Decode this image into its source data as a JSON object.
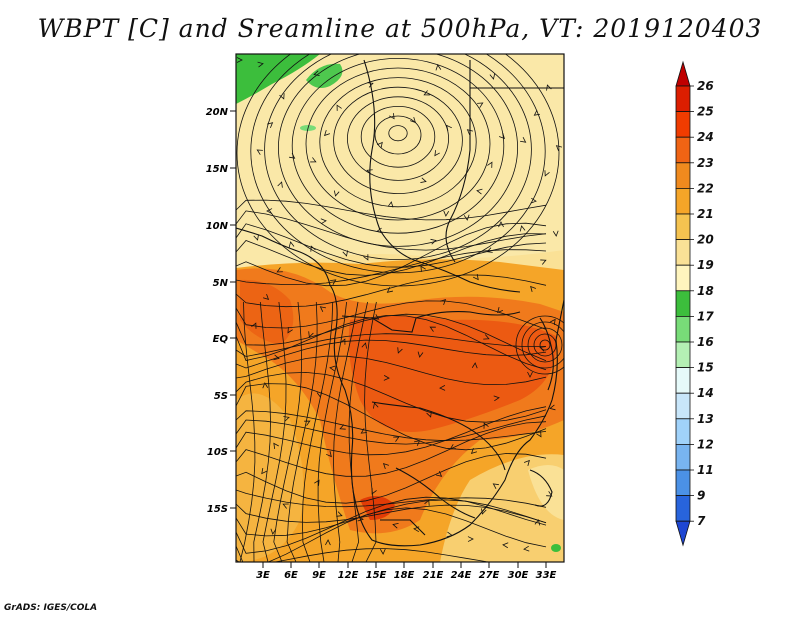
{
  "title": "WBPT [C] and Sreamline at 500hPa, VT: 2019120403",
  "credit": "GrADS: IGES/COLA",
  "map": {
    "lat_labels": [
      "20N",
      "15N",
      "10N",
      "5N",
      "EQ",
      "5S",
      "10S",
      "15S"
    ],
    "lon_labels": [
      "3E",
      "6E",
      "9E",
      "12E",
      "15E",
      "18E",
      "21E",
      "24E",
      "27E",
      "30E",
      "33E"
    ]
  },
  "colorbar": {
    "labels": [
      "26",
      "25",
      "24",
      "23",
      "22",
      "21",
      "20",
      "19",
      "18",
      "17",
      "16",
      "15",
      "14",
      "13",
      "12",
      "11",
      "9",
      "7"
    ],
    "colors": [
      "#c00000",
      "#dc1e00",
      "#f03c00",
      "#f06414",
      "#f08a1e",
      "#f5a528",
      "#f5c350",
      "#fae196",
      "#fff5be",
      "#3cbe3c",
      "#78dc78",
      "#b4f0b4",
      "#e6fafa",
      "#c8e6fa",
      "#a0d2fa",
      "#78b4f0",
      "#4b91e6",
      "#2864dc",
      "#1e46d2"
    ]
  }
}
